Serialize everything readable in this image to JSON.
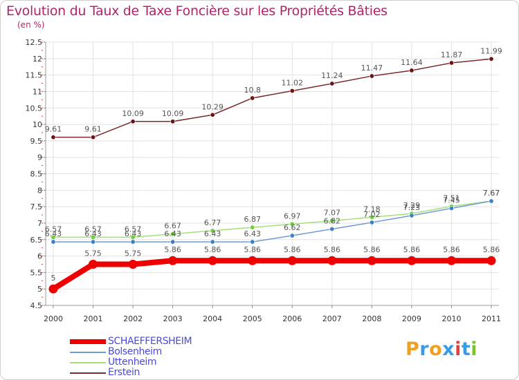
{
  "chart_data": {
    "type": "line",
    "title": "Evolution du Taux de Taxe Foncière sur les Propriétés Bâties",
    "ylabel": "(en %)",
    "xlabel": "",
    "x": [
      "2000",
      "2001",
      "2002",
      "2003",
      "2004",
      "2005",
      "2006",
      "2007",
      "2008",
      "2009",
      "2010",
      "2011"
    ],
    "ylim": [
      4.5,
      12.5
    ],
    "yticks": [
      "4.5",
      "5",
      "5.5",
      "6",
      "6.5",
      "7",
      "7.5",
      "8",
      "8.5",
      "9",
      "9.5",
      "10",
      "10.5",
      "11",
      "11.5",
      "12",
      "12.5"
    ],
    "grid": true,
    "legend_position": "bottom-left",
    "series": [
      {
        "name": "Erstein",
        "color": "#7a2a2a",
        "marker": "#6b1414",
        "values": [
          9.61,
          9.61,
          10.09,
          10.09,
          10.29,
          10.8,
          11.02,
          11.24,
          11.47,
          11.64,
          11.87,
          11.99
        ],
        "labels": [
          "9.61",
          "9.61",
          "10.09",
          "10.09",
          "10.29",
          "10.8",
          "11.02",
          "11.24",
          "11.47",
          "11.64",
          "11.87",
          "11.99"
        ]
      },
      {
        "name": "Uttenheim",
        "color": "#a3e07a",
        "marker": "#6fcc3a",
        "values": [
          6.57,
          6.57,
          6.57,
          6.67,
          6.77,
          6.87,
          6.97,
          7.07,
          7.18,
          7.29,
          7.51,
          7.67
        ],
        "labels": [
          "6.57",
          "6.57",
          "6.57",
          "6.67",
          "6.77",
          "6.87",
          "6.97",
          "7.07",
          "7.18",
          "7.29",
          "7.51",
          "7.67"
        ]
      },
      {
        "name": "Bolsenheim",
        "color": "#6e9bd0",
        "marker": "#3f7fc4",
        "values": [
          6.43,
          6.43,
          6.43,
          6.43,
          6.43,
          6.43,
          6.62,
          6.82,
          7.02,
          7.23,
          7.45,
          7.67
        ],
        "labels": [
          "6.43",
          "6.43",
          "6.43",
          "6.43",
          "6.43",
          "6.43",
          "6.62",
          "6.82",
          "7.02",
          "7.23",
          "7.45",
          "7.67"
        ]
      },
      {
        "name": "SCHAEFFERSHEIM",
        "color": "#ee0000",
        "marker": "#ee0000",
        "values": [
          5,
          5.75,
          5.75,
          5.86,
          5.86,
          5.86,
          5.86,
          5.86,
          5.86,
          5.86,
          5.86,
          5.86
        ],
        "labels": [
          "5",
          "5.75",
          "5.75",
          "5.86",
          "5.86",
          "5.86",
          "5.86",
          "5.86",
          "5.86",
          "5.86",
          "5.86",
          "5.86"
        ]
      }
    ],
    "legend": [
      {
        "name": "SCHAEFFERSHEIM",
        "color": "#ee0000"
      },
      {
        "name": "Bolsenheim",
        "color": "#6e9bd0"
      },
      {
        "name": "Uttenheim",
        "color": "#a3e07a"
      },
      {
        "name": "Erstein",
        "color": "#7a2a2a"
      }
    ]
  },
  "logo": {
    "letters": [
      "P",
      "r",
      "o",
      "x",
      "i",
      "t",
      "i"
    ],
    "colors": [
      "#f0a020",
      "#3a9be0",
      "#f0a020",
      "#3a9be0",
      "#e04040",
      "#3a9be0",
      "#80c030"
    ]
  }
}
